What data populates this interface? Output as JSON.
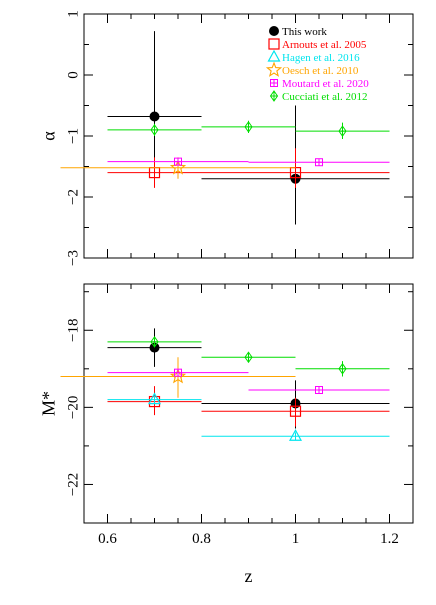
{
  "chart_data": [
    {
      "type": "scatter",
      "panel": "top",
      "ylabel": "α",
      "xlabel": "",
      "xlim": [
        0.55,
        1.25
      ],
      "ylim": [
        -3,
        1
      ],
      "yticks": [
        "−3",
        "−2",
        "−1",
        "0",
        "1"
      ],
      "ytick_values": [
        -3,
        -2,
        -1,
        0,
        1
      ],
      "show_xtick_labels": false,
      "legend_position": "top-right",
      "series": [
        {
          "name": "This work",
          "color": "#000000",
          "marker": "filled-circle",
          "points": [
            {
              "x": 0.7,
              "y": -0.68,
              "xlo": 0.6,
              "xhi": 0.8,
              "ylo": -1.8,
              "yhi": 0.72
            },
            {
              "x": 1.0,
              "y": -1.7,
              "xlo": 0.8,
              "xhi": 1.2,
              "ylo": -2.45,
              "yhi": -0.5
            }
          ]
        },
        {
          "name": "Arnouts et al. 2005",
          "color": "#ff0000",
          "marker": "open-square",
          "points": [
            {
              "x": 0.7,
              "y": -1.6,
              "xlo": 0.6,
              "xhi": 0.8,
              "ylo": -1.85,
              "yhi": -1.35
            },
            {
              "x": 1.0,
              "y": -1.6,
              "xlo": 0.8,
              "xhi": 1.2,
              "ylo": -1.85,
              "yhi": -1.2
            }
          ]
        },
        {
          "name": "Hagen et al. 2016",
          "color": "#00e5ee",
          "marker": "open-triangle",
          "points": []
        },
        {
          "name": "Oesch et al. 2010",
          "color": "#ffa500",
          "marker": "open-star",
          "points": [
            {
              "x": 0.75,
              "y": -1.52,
              "xlo": 0.5,
              "xhi": 1.0,
              "ylo": -1.7,
              "yhi": -1.35
            }
          ]
        },
        {
          "name": "Moutard et al. 2020",
          "color": "#ff00ff",
          "marker": "square-plus",
          "points": [
            {
              "x": 0.75,
              "y": -1.42,
              "xlo": 0.6,
              "xhi": 0.9,
              "ylo": -1.48,
              "yhi": -1.36
            },
            {
              "x": 1.05,
              "y": -1.43,
              "xlo": 0.9,
              "xhi": 1.2,
              "ylo": -1.47,
              "yhi": -1.39
            }
          ]
        },
        {
          "name": "Cucciati et al. 2012",
          "color": "#00dd00",
          "marker": "diamond-plus",
          "points": [
            {
              "x": 0.7,
              "y": -0.9,
              "xlo": 0.6,
              "xhi": 0.8,
              "ylo": -1.0,
              "yhi": -0.8
            },
            {
              "x": 0.9,
              "y": -0.85,
              "xlo": 0.8,
              "xhi": 1.0,
              "ylo": -0.95,
              "yhi": -0.75
            },
            {
              "x": 1.1,
              "y": -0.92,
              "xlo": 1.0,
              "xhi": 1.2,
              "ylo": -1.05,
              "yhi": -0.78
            }
          ]
        }
      ]
    },
    {
      "type": "scatter",
      "panel": "bottom",
      "ylabel": "M*",
      "xlabel": "z",
      "xlim": [
        0.55,
        1.25
      ],
      "ylim": [
        -23,
        -16.8
      ],
      "yticks": [
        "−18",
        "−20",
        "−22"
      ],
      "ytick_values": [
        -18,
        -20,
        -22
      ],
      "xticks": [
        "0.6",
        "0.8",
        "1",
        "1.2"
      ],
      "xtick_values": [
        0.6,
        0.8,
        1.0,
        1.2
      ],
      "series": [
        {
          "name": "This work",
          "color": "#000000",
          "marker": "filled-circle",
          "points": [
            {
              "x": 0.7,
              "y": -18.45,
              "xlo": 0.6,
              "xhi": 0.8,
              "ylo": -18.95,
              "yhi": -17.95
            },
            {
              "x": 1.0,
              "y": -19.9,
              "xlo": 0.8,
              "xhi": 1.2,
              "ylo": -20.55,
              "yhi": -19.3
            }
          ]
        },
        {
          "name": "Arnouts et al. 2005",
          "color": "#ff0000",
          "marker": "open-square",
          "points": [
            {
              "x": 0.7,
              "y": -19.85,
              "xlo": 0.6,
              "xhi": 0.8,
              "ylo": -20.2,
              "yhi": -19.45
            },
            {
              "x": 1.0,
              "y": -20.1,
              "xlo": 0.8,
              "xhi": 1.2,
              "ylo": -20.5,
              "yhi": -19.75
            }
          ]
        },
        {
          "name": "Hagen et al. 2016",
          "color": "#00e5ee",
          "marker": "open-triangle",
          "points": [
            {
              "x": 0.7,
              "y": -19.8,
              "xlo": 0.6,
              "xhi": 0.8,
              "ylo": -19.9,
              "yhi": -19.7
            },
            {
              "x": 1.0,
              "y": -20.75,
              "xlo": 0.8,
              "xhi": 1.2,
              "ylo": -20.85,
              "yhi": -20.65
            }
          ]
        },
        {
          "name": "Oesch et al. 2010",
          "color": "#ffa500",
          "marker": "open-star",
          "points": [
            {
              "x": 0.75,
              "y": -19.2,
              "xlo": 0.5,
              "xhi": 1.0,
              "ylo": -19.75,
              "yhi": -18.7
            }
          ]
        },
        {
          "name": "Moutard et al. 2020",
          "color": "#ff00ff",
          "marker": "square-plus",
          "points": [
            {
              "x": 0.75,
              "y": -19.1,
              "xlo": 0.6,
              "xhi": 0.9,
              "ylo": -19.2,
              "yhi": -19.0
            },
            {
              "x": 1.05,
              "y": -19.55,
              "xlo": 0.9,
              "xhi": 1.2,
              "ylo": -19.62,
              "yhi": -19.48
            }
          ]
        },
        {
          "name": "Cucciati et al. 2012",
          "color": "#00dd00",
          "marker": "diamond-plus",
          "points": [
            {
              "x": 0.7,
              "y": -18.3,
              "xlo": 0.6,
              "xhi": 0.8,
              "ylo": -18.4,
              "yhi": -18.2
            },
            {
              "x": 0.9,
              "y": -18.7,
              "xlo": 0.8,
              "xhi": 1.0,
              "ylo": -18.8,
              "yhi": -18.6
            },
            {
              "x": 1.1,
              "y": -19.0,
              "xlo": 1.0,
              "xhi": 1.2,
              "ylo": -19.2,
              "yhi": -18.8
            }
          ]
        }
      ]
    }
  ]
}
